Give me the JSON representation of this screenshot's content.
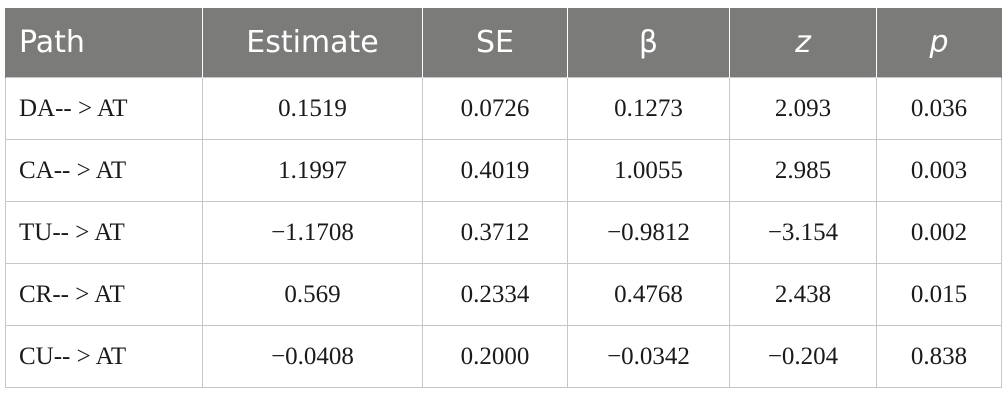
{
  "table": {
    "headers": [
      "Path",
      "Estimate",
      "SE",
      "β",
      "z",
      "p"
    ],
    "rows": [
      [
        "DA-- > AT",
        "0.1519",
        "0.0726",
        "0.1273",
        "2.093",
        "0.036"
      ],
      [
        "CA-- > AT",
        "1.1997",
        "0.4019",
        "1.0055",
        "2.985",
        "0.003"
      ],
      [
        "TU-- > AT",
        "−1.1708",
        "0.3712",
        "−0.9812",
        "−3.154",
        "0.002"
      ],
      [
        "CR-- > AT",
        "0.569",
        "0.2334",
        "0.4768",
        "2.438",
        "0.015"
      ],
      [
        "CU-- > AT",
        "−0.0408",
        "0.2000",
        "−0.0342",
        "−0.204",
        "0.838"
      ]
    ]
  }
}
